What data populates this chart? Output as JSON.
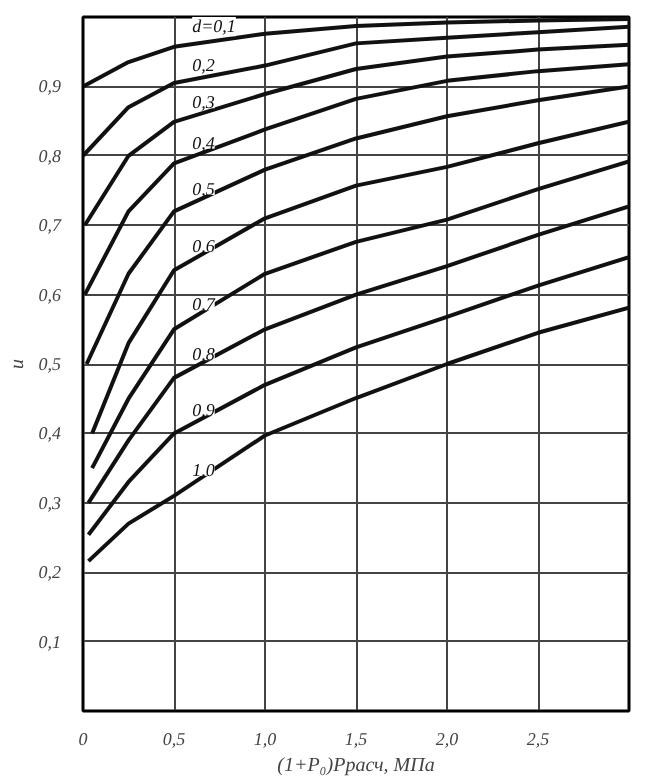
{
  "chart_data": {
    "type": "line",
    "xlabel": "(1+P₀)Pрасч, МПа",
    "ylabel": "u",
    "xlim": [
      0,
      3
    ],
    "ylim": [
      0,
      1
    ],
    "xticks": [
      {
        "value": 0,
        "label": "0"
      },
      {
        "value": 0.5,
        "label": "0,5"
      },
      {
        "value": 1,
        "label": "1,0"
      },
      {
        "value": 1.5,
        "label": "1,5"
      },
      {
        "value": 2,
        "label": "2,0"
      },
      {
        "value": 2.5,
        "label": "2,5"
      },
      {
        "value": 3,
        "label": null
      }
    ],
    "yticks": [
      {
        "value": 0.1,
        "label": "0,1"
      },
      {
        "value": 0.2,
        "label": "0,2"
      },
      {
        "value": 0.3,
        "label": "0,3"
      },
      {
        "value": 0.4,
        "label": "0,4"
      },
      {
        "value": 0.5,
        "label": "0,5"
      },
      {
        "value": 0.6,
        "label": "0,6"
      },
      {
        "value": 0.7,
        "label": "0,7"
      },
      {
        "value": 0.8,
        "label": "0,8"
      },
      {
        "value": 0.9,
        "label": "0,9"
      },
      {
        "value": 1,
        "label": null
      }
    ],
    "grid": true,
    "marker": "none",
    "line_style": "solid",
    "series": [
      {
        "name": "d=0,1",
        "color": "#111111",
        "x": [
          0,
          0.25,
          0.5,
          1,
          1.5,
          2,
          2.5,
          3
        ],
        "values": [
          0.9,
          0.935,
          0.957,
          0.976,
          0.987,
          0.992,
          0.995,
          0.997
        ]
      },
      {
        "name": "0,2",
        "color": "#111111",
        "x": [
          0,
          0.25,
          0.5,
          1,
          1.5,
          2,
          2.5,
          3
        ],
        "values": [
          0.8,
          0.87,
          0.905,
          0.93,
          0.962,
          0.97,
          0.978,
          0.986
        ]
      },
      {
        "name": "0,3",
        "color": "#111111",
        "x": [
          0.01,
          0.25,
          0.5,
          1,
          1.5,
          2,
          2.5,
          3
        ],
        "values": [
          0.7,
          0.8,
          0.849,
          0.889,
          0.925,
          0.943,
          0.953,
          0.96
        ]
      },
      {
        "name": "0,4",
        "color": "#111111",
        "x": [
          0.01,
          0.25,
          0.5,
          1,
          1.5,
          2,
          2.5,
          3
        ],
        "values": [
          0.6,
          0.72,
          0.789,
          0.838,
          0.882,
          0.908,
          0.922,
          0.932
        ]
      },
      {
        "name": "0,5",
        "color": "#111111",
        "x": [
          0.02,
          0.25,
          0.5,
          1,
          1.5,
          2,
          2.5,
          3
        ],
        "values": [
          0.5,
          0.63,
          0.72,
          0.78,
          0.825,
          0.857,
          0.88,
          0.9
        ]
      },
      {
        "name": "0,6",
        "color": "#111111",
        "x": [
          0.05,
          0.25,
          0.5,
          1,
          1.5,
          2,
          2.5,
          3
        ],
        "values": [
          0.4,
          0.53,
          0.635,
          0.71,
          0.757,
          0.784,
          0.818,
          0.849
        ]
      },
      {
        "name": "0,7",
        "color": "#111111",
        "x": [
          0.05,
          0.25,
          0.5,
          1,
          1.5,
          2,
          2.5,
          3
        ],
        "values": [
          0.35,
          0.45,
          0.55,
          0.63,
          0.676,
          0.708,
          0.752,
          0.792
        ]
      },
      {
        "name": "0,8",
        "color": "#111111",
        "x": [
          0.03,
          0.25,
          0.5,
          1,
          1.5,
          2,
          2.5,
          3
        ],
        "values": [
          0.3,
          0.39,
          0.48,
          0.55,
          0.6,
          0.641,
          0.686,
          0.727
        ]
      },
      {
        "name": "0,9",
        "color": "#111111",
        "x": [
          0.03,
          0.25,
          0.5,
          1,
          1.5,
          2,
          2.5,
          3
        ],
        "values": [
          0.254,
          0.33,
          0.4,
          0.47,
          0.524,
          0.568,
          0.613,
          0.654
        ]
      },
      {
        "name": "1,0",
        "color": "#111111",
        "x": [
          0.03,
          0.25,
          0.5,
          1,
          1.5,
          2,
          2.5,
          3
        ],
        "values": [
          0.216,
          0.27,
          0.31,
          0.397,
          0.451,
          0.5,
          0.545,
          0.581
        ]
      }
    ]
  }
}
